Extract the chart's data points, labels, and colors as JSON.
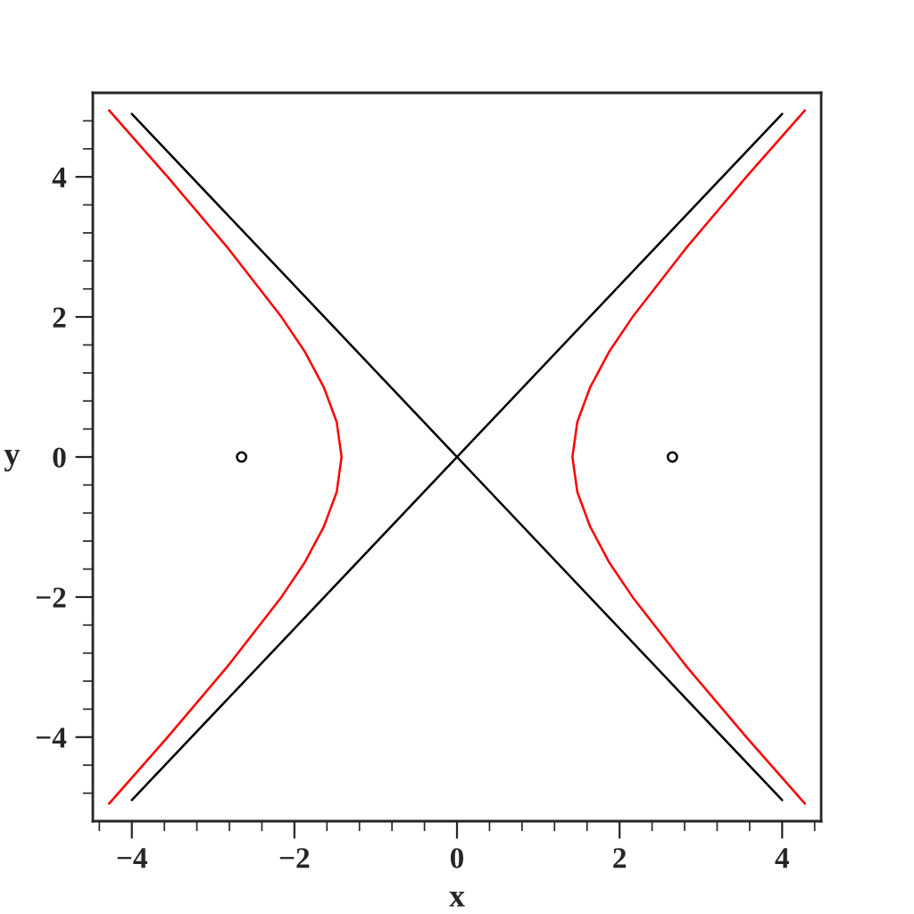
{
  "chart_data": {
    "type": "line",
    "xlabel": "x",
    "ylabel": "y",
    "xlim": [
      -4.48,
      4.48
    ],
    "ylim": [
      -5.2,
      5.2
    ],
    "xticks": [
      {
        "value": -4.4,
        "label": null
      },
      {
        "value": -4,
        "label": "−4"
      },
      {
        "value": -3.6,
        "label": null
      },
      {
        "value": -3.2,
        "label": null
      },
      {
        "value": -2.8,
        "label": null
      },
      {
        "value": -2.4,
        "label": null
      },
      {
        "value": -2,
        "label": "−2"
      },
      {
        "value": -1.6,
        "label": null
      },
      {
        "value": -1.2,
        "label": null
      },
      {
        "value": -0.8,
        "label": null
      },
      {
        "value": -0.4,
        "label": null
      },
      0,
      {
        "value": 0.4,
        "label": null
      },
      {
        "value": 0.8,
        "label": null
      },
      {
        "value": 1.2,
        "label": null
      },
      {
        "value": 1.6,
        "label": null
      },
      2,
      {
        "value": 2.4,
        "label": null
      },
      {
        "value": 2.8,
        "label": null
      },
      {
        "value": 3.2,
        "label": null
      },
      {
        "value": 3.6,
        "label": null
      },
      4,
      {
        "value": 4.4,
        "label": null
      }
    ],
    "yticks": [
      {
        "value": -4.8,
        "label": null
      },
      {
        "value": -4.4,
        "label": null
      },
      {
        "value": -4,
        "label": "−4"
      },
      {
        "value": -3.6,
        "label": null
      },
      {
        "value": -3.2,
        "label": null
      },
      {
        "value": -2.8,
        "label": null
      },
      {
        "value": -2.4,
        "label": null
      },
      {
        "value": -2,
        "label": "−2"
      },
      {
        "value": -1.6,
        "label": null
      },
      {
        "value": -1.2,
        "label": null
      },
      {
        "value": -0.8,
        "label": null
      },
      {
        "value": -0.4,
        "label": null
      },
      0,
      {
        "value": 0.4,
        "label": null
      },
      {
        "value": 0.8,
        "label": null
      },
      {
        "value": 1.2,
        "label": null
      },
      {
        "value": 1.6,
        "label": null
      },
      2,
      {
        "value": 2.4,
        "label": null
      },
      {
        "value": 2.8,
        "label": null
      },
      {
        "value": 3.2,
        "label": null
      },
      {
        "value": 3.6,
        "label": null
      },
      4,
      {
        "value": 4.4,
        "label": null
      },
      {
        "value": 4.8,
        "label": null
      }
    ],
    "grid": false,
    "series": [
      {
        "color": "#ff0000",
        "x": [
          4.28,
          3.56,
          2.83,
          2.16,
          1.87,
          1.64,
          1.48,
          1.42,
          1.48,
          1.64,
          1.87,
          2.16,
          2.83,
          3.56,
          4.28
        ],
        "values": [
          4.95,
          4,
          3,
          2,
          1.5,
          1,
          0.5,
          0,
          -0.5,
          -1,
          -1.5,
          -2,
          -3,
          -4,
          -4.95
        ]
      },
      {
        "color": "#ff0000",
        "x": [
          -4.28,
          -3.56,
          -2.83,
          -2.16,
          -1.87,
          -1.64,
          -1.48,
          -1.42,
          -1.48,
          -1.64,
          -1.87,
          -2.16,
          -2.83,
          -3.56,
          -4.28
        ],
        "values": [
          4.95,
          4,
          3,
          2,
          1.5,
          1,
          0.5,
          0,
          -0.5,
          -1,
          -1.5,
          -2,
          -3,
          -4,
          -4.95
        ]
      },
      {
        "color": "#000000",
        "x": [
          -4,
          4
        ],
        "values": [
          -4.9,
          4.9
        ]
      },
      {
        "color": "#000000",
        "x": [
          -4,
          4
        ],
        "values": [
          4.9,
          -4.9
        ]
      },
      {
        "type": "scatter",
        "color": "#000000",
        "marker": "circle",
        "x": [
          -2.65,
          2.65
        ],
        "values": [
          0,
          0
        ]
      }
    ]
  }
}
